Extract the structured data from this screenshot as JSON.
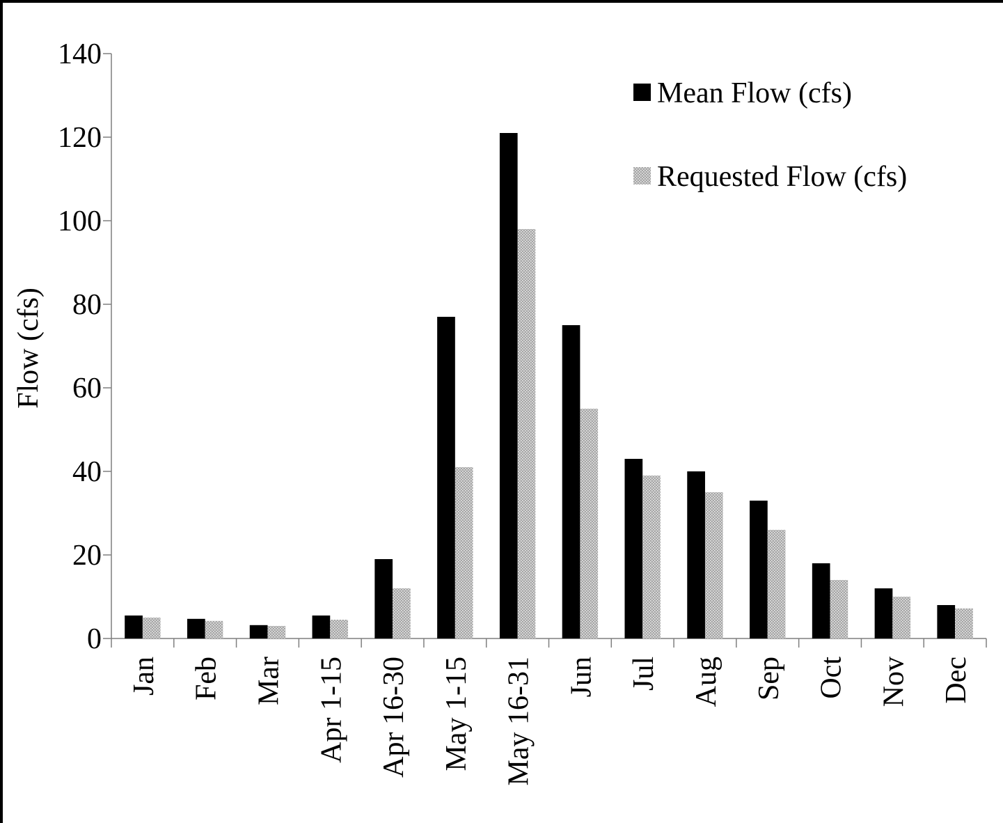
{
  "chart_data": {
    "type": "bar",
    "title": "",
    "xlabel": "",
    "ylabel": "Flow (cfs)",
    "ylim": [
      0,
      140
    ],
    "yticks": [
      0,
      20,
      40,
      60,
      80,
      100,
      120,
      140
    ],
    "grid": false,
    "legend_position": "top-right",
    "categories": [
      "Jan",
      "Feb",
      "Mar",
      "Apr 1-15",
      "Apr 16-30",
      "May 1-15",
      "May 16-31",
      "Jun",
      "Jul",
      "Aug",
      "Sep",
      "Oct",
      "Nov",
      "Dec"
    ],
    "series": [
      {
        "name": "Mean Flow (cfs)",
        "color": "#000000",
        "pattern": "solid",
        "values": [
          5.5,
          4.7,
          3.2,
          5.5,
          19,
          77,
          121,
          75,
          43,
          40,
          33,
          18,
          12,
          8
        ]
      },
      {
        "name": "Requested Flow (cfs)",
        "color": "#a6a6a6",
        "pattern": "dotted",
        "values": [
          5,
          4.2,
          3,
          4.5,
          12,
          41,
          98,
          55,
          39,
          35,
          26,
          14,
          10,
          7.2
        ]
      }
    ]
  }
}
